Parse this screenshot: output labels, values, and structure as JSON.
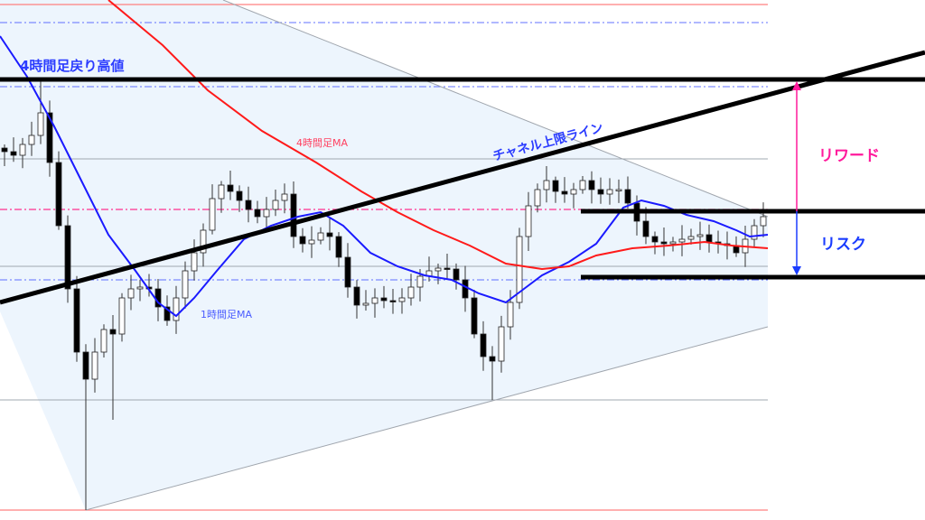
{
  "chart_data": {
    "type": "candlestick",
    "title": "",
    "xlabel": "",
    "ylabel": "",
    "grid": false,
    "closes": [
      432,
      428,
      440,
      450,
      475,
      420,
      350,
      280,
      210,
      180,
      210,
      235,
      230,
      270,
      280,
      282,
      280,
      260,
      245,
      270,
      300,
      320,
      345,
      380,
      395,
      388,
      378,
      368,
      360,
      368,
      378,
      385,
      338,
      330,
      334,
      342,
      338,
      315,
      282,
      262,
      264,
      270,
      267,
      266,
      270,
      282,
      294,
      300,
      303,
      302,
      290,
      270,
      230,
      205,
      200,
      238,
      265,
      338,
      372,
      390,
      400,
      388,
      385,
      390,
      400,
      390,
      385,
      390,
      390,
      375,
      355,
      338,
      332,
      330,
      332,
      335,
      338,
      340,
      332,
      330,
      328,
      320,
      335,
      350,
      360
    ],
    "wick_extremes": [
      {
        "index": 4,
        "high": 512
      },
      {
        "index": 9,
        "low": 35
      },
      {
        "index": 12,
        "low": 135
      },
      {
        "index": 54,
        "low": 157
      },
      {
        "index": 64,
        "high": 405
      }
    ],
    "series": [
      {
        "name": "1時間足MA",
        "color": "#1a1aff",
        "points": [
          [
            -0.5,
            560
          ],
          [
            2.5,
            515
          ],
          [
            5.5,
            460
          ],
          [
            8.5,
            400
          ],
          [
            11.5,
            340
          ],
          [
            14.5,
            300
          ],
          [
            17,
            265
          ],
          [
            19,
            250
          ],
          [
            21,
            270
          ],
          [
            23.5,
            300
          ],
          [
            26.5,
            335
          ],
          [
            29.5,
            350
          ],
          [
            32.5,
            360
          ],
          [
            35,
            365
          ],
          [
            37.5,
            350
          ],
          [
            40.5,
            320
          ],
          [
            43.5,
            305
          ],
          [
            46.5,
            295
          ],
          [
            49.5,
            290
          ],
          [
            52.5,
            275
          ],
          [
            55.5,
            265
          ],
          [
            57.5,
            280
          ],
          [
            59.5,
            295
          ],
          [
            62.5,
            310
          ],
          [
            65.5,
            330
          ],
          [
            68.5,
            370
          ],
          [
            70.5,
            378
          ],
          [
            73,
            372
          ],
          [
            75.5,
            362
          ],
          [
            78.5,
            355
          ],
          [
            81,
            345
          ],
          [
            82.5,
            338
          ],
          [
            84.5,
            340
          ]
        ]
      },
      {
        "name": "4時間足MA",
        "color": "#ff1a1a",
        "points": [
          [
            11.5,
            600
          ],
          [
            17.5,
            550
          ],
          [
            22.5,
            500
          ],
          [
            28.5,
            455
          ],
          [
            34.5,
            420
          ],
          [
            39.5,
            388
          ],
          [
            43.5,
            365
          ],
          [
            47.5,
            345
          ],
          [
            51.5,
            328
          ],
          [
            55.5,
            308
          ],
          [
            59.5,
            302
          ],
          [
            62.5,
            305
          ],
          [
            65.5,
            317
          ],
          [
            69.5,
            325
          ],
          [
            73.5,
            328
          ],
          [
            77.5,
            332
          ],
          [
            80.5,
            328
          ],
          [
            84.5,
            325
          ]
        ]
      }
    ],
    "levels": {
      "red_solid": [
        595,
        35
      ],
      "blue_dashdot": [
        575,
        504,
        290
      ],
      "pink_dashdot": [
        368
      ],
      "gray_solid": [
        424,
        305,
        157
      ]
    },
    "key_levels": {
      "recovery_high": 512,
      "entry": 366,
      "stop": 293,
      "entry_from_index": 63.8
    },
    "channel_upper_line": [
      [
        -0.5,
        265
      ],
      [
        101.9,
        542
      ]
    ],
    "triangle_upper": [
      [
        24.2,
        600
      ],
      [
        84.5,
        360
      ]
    ],
    "triangle_lower": [
      [
        9,
        35
      ],
      [
        84.5,
        238
      ]
    ],
    "colors": {
      "up_body": "#ffffff",
      "down_body": "#000000",
      "shade": "#edf5fd",
      "reward": "#ff1a9c",
      "risk": "#1a3cff",
      "label_blue": "#2b3cff"
    }
  },
  "labels": {
    "recovery_high": "4時間足戻り高値",
    "ma_4h": "4時間足MA",
    "ma_1h": "1時間足MA",
    "channel_upper": "チャネル上限ライン",
    "reward": "リワード",
    "risk": "リスク"
  }
}
